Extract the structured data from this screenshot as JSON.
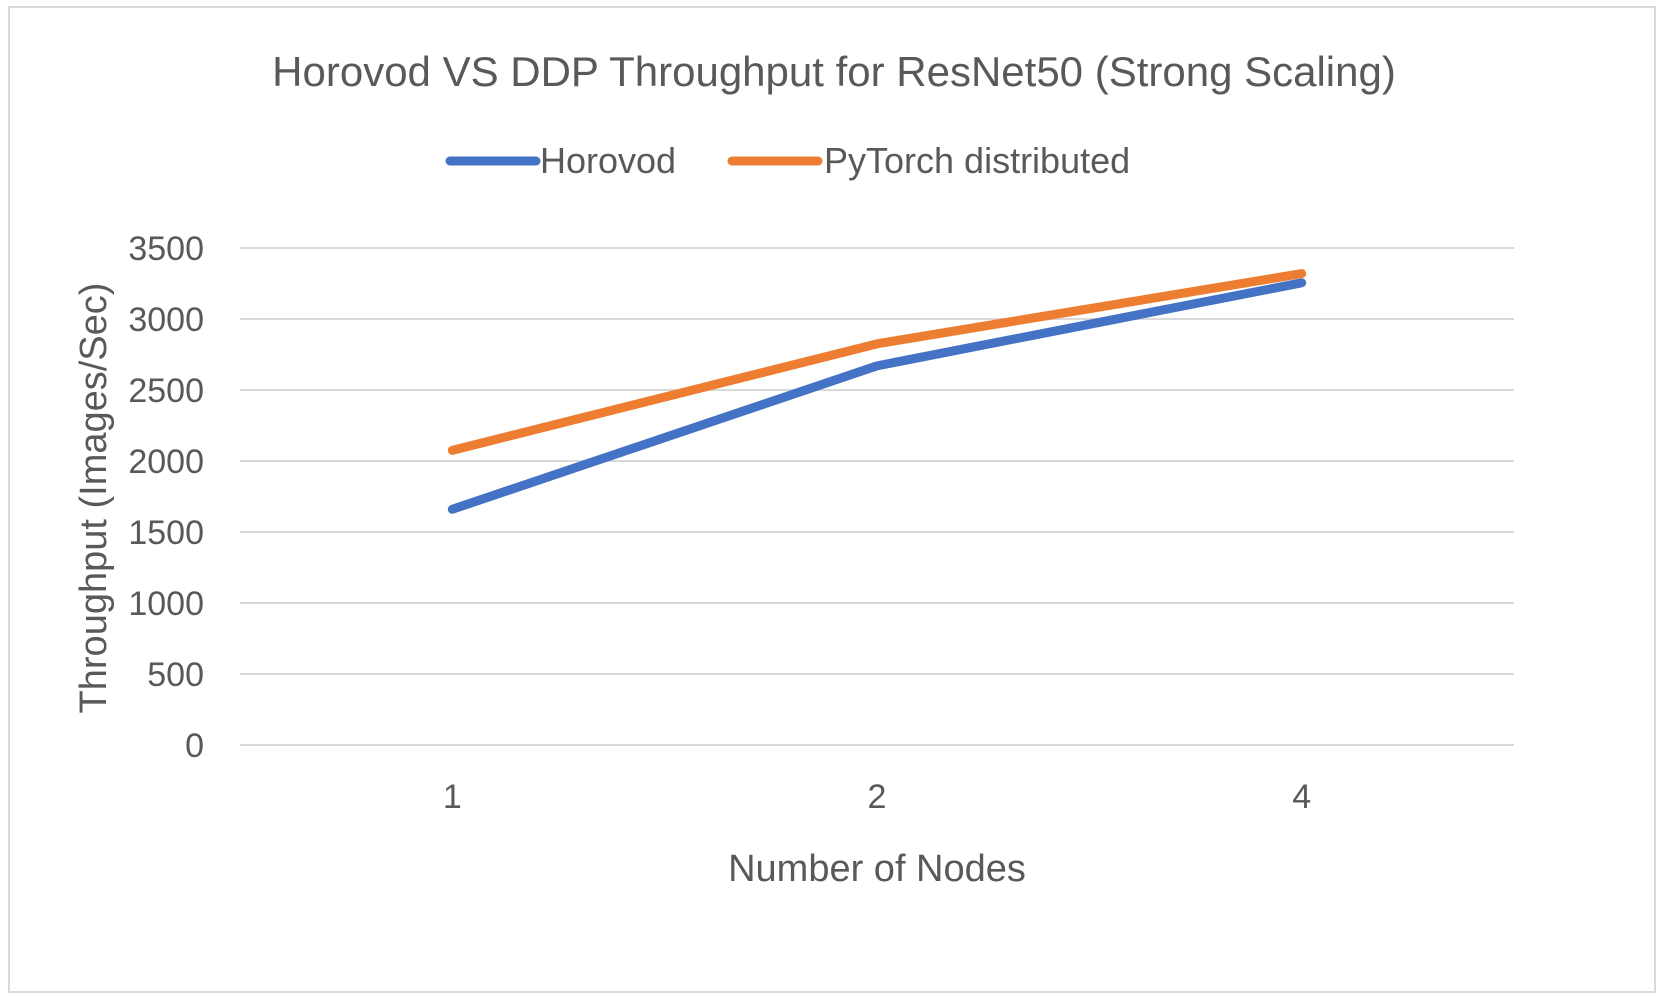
{
  "chart_data": {
    "type": "line",
    "title": "Horovod VS DDP Throughput for ResNet50 (Strong Scaling)",
    "xlabel": "Number of Nodes",
    "ylabel": "Throughput (Images/Sec)",
    "categories": [
      "1",
      "2",
      "4"
    ],
    "y_ticks": [
      "0",
      "500",
      "1000",
      "1500",
      "2000",
      "2500",
      "3000",
      "3500"
    ],
    "ylim": [
      0,
      3500
    ],
    "grid": true,
    "legend_position": "top",
    "series": [
      {
        "name": "Horovod",
        "color": "#4472c4",
        "values": [
          1660,
          2670,
          3255
        ]
      },
      {
        "name": "PyTorch distributed",
        "color": "#ed7d31",
        "values": [
          2075,
          2825,
          3320
        ]
      }
    ]
  }
}
